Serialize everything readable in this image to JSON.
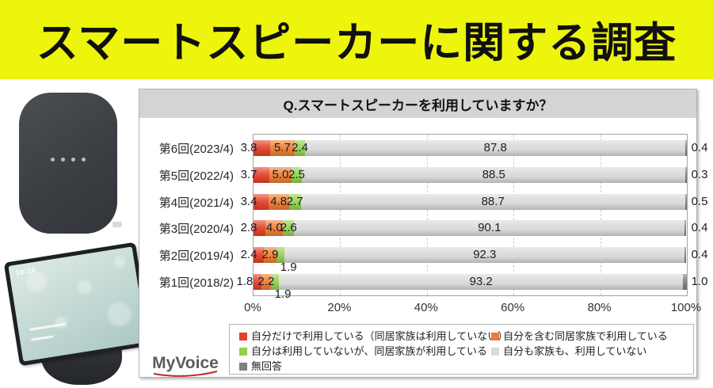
{
  "page": {
    "title": "スマートスピーカーに関する調査",
    "banner_color": "#edf50d",
    "content_background": "#ffffff"
  },
  "devices": {
    "speaker_name": "smart-speaker-photo",
    "display_name": "smart-display-photo",
    "display_screen_time": "10:10"
  },
  "panel": {
    "question": "Q.スマートスピーカーを利用していますか？",
    "logo_text": "MyVoice"
  },
  "chart_data": {
    "type": "bar",
    "stacked": true,
    "orientation": "horizontal",
    "title": "Q.スマートスピーカーを利用していますか？",
    "categories": [
      "第6回(2023/4)",
      "第5回(2022/4)",
      "第4回(2021/4)",
      "第3回(2020/4)",
      "第2回(2019/4)",
      "第1回(2018/2)"
    ],
    "series": [
      {
        "name": "自分だけで利用している（同居家族は利用していない）",
        "color": "#e2432b",
        "values": [
          3.8,
          3.7,
          3.4,
          2.8,
          2.4,
          1.8
        ]
      },
      {
        "name": "自分を含む同居家族で利用している",
        "color": "#ed7d31",
        "values": [
          5.7,
          5.0,
          4.8,
          4.0,
          2.9,
          2.2
        ]
      },
      {
        "name": "自分は利用していないが、同居家族が利用している",
        "color": "#92d050",
        "values": [
          2.4,
          2.5,
          2.7,
          2.6,
          1.9,
          1.9
        ]
      },
      {
        "name": "自分も家族も、利用していない",
        "color": "#d9d9d9",
        "values": [
          87.8,
          88.5,
          88.7,
          90.1,
          92.3,
          93.2
        ]
      },
      {
        "name": "無回答",
        "color": "#7f7f7f",
        "values": [
          0.4,
          0.3,
          0.5,
          0.4,
          0.4,
          1.0
        ]
      }
    ],
    "x_ticks": [
      "0%",
      "20%",
      "40%",
      "60%",
      "80%",
      "100%"
    ],
    "xlim": [
      0,
      100
    ],
    "grid": true,
    "legend_position": "bottom"
  }
}
